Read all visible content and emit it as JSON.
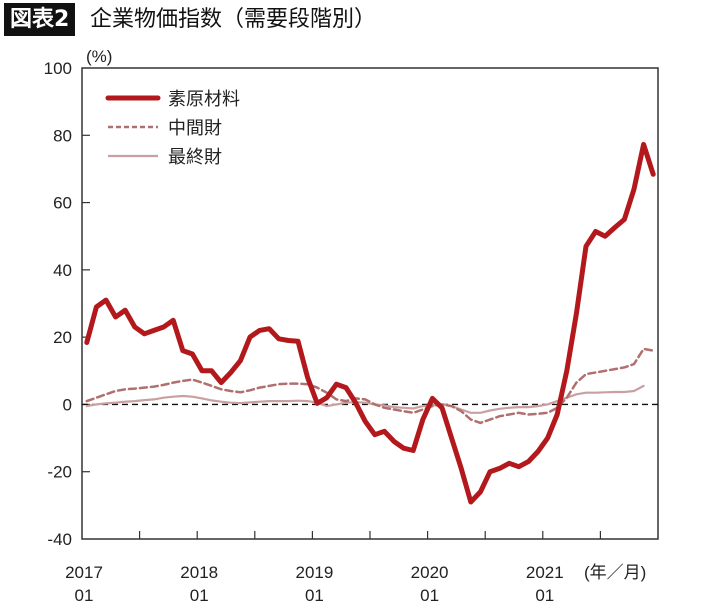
{
  "header": {
    "badge": "図表2",
    "title": "企業物価指数（需要段階別）"
  },
  "chart_data": {
    "type": "line",
    "title": "企業物価指数（需要段階別）",
    "ylabel": "(%)",
    "xlabel": "(年／月)",
    "ylim": [
      -40,
      100
    ],
    "yticks": [
      -40,
      -20,
      0,
      20,
      40,
      60,
      80,
      100
    ],
    "x_start": "2017/01",
    "x_end": "2021/12",
    "xtick_labels": [
      [
        "2017",
        "01"
      ],
      [
        "2018",
        "01"
      ],
      [
        "2019",
        "01"
      ],
      [
        "2020",
        "01"
      ],
      [
        "2021",
        "01"
      ]
    ],
    "legend_position": "top-left",
    "reference_line": 0,
    "series": [
      {
        "name": "素原材料",
        "color": "#b3191c",
        "style": "thick-solid",
        "values": [
          18.4,
          29,
          31,
          26,
          28,
          23,
          21,
          22,
          23,
          25,
          16,
          15,
          10,
          10,
          6.5,
          9.5,
          13,
          20,
          22,
          22.5,
          19.5,
          19,
          18.8,
          8,
          0.3,
          2,
          6,
          5,
          0.5,
          -5,
          -9,
          -8,
          -11,
          -13,
          -13.7,
          -4.5,
          1.8,
          -1,
          -10,
          -19,
          -29,
          -26,
          -20,
          -19,
          -17.5,
          -18.5,
          -17,
          -14,
          -10,
          -3,
          10,
          27,
          47,
          51.4,
          50,
          52.6,
          55,
          64,
          77.3,
          68.4
        ]
      },
      {
        "name": "中間財",
        "color": "#b07070",
        "style": "dashed",
        "values": [
          1,
          2,
          3,
          4,
          4.5,
          4.7,
          5,
          5.3,
          5.8,
          6.5,
          7,
          7.4,
          6.5,
          5.5,
          4.5,
          4,
          3.6,
          4.2,
          5,
          5.5,
          6,
          6.2,
          6.2,
          6,
          5,
          3.5,
          1.5,
          1,
          1.8,
          1.5,
          0,
          -1,
          -1.5,
          -2,
          -2.5,
          -1.5,
          -0.5,
          0,
          -0.5,
          -2,
          -4.5,
          -5.5,
          -4.5,
          -3.5,
          -3,
          -2.5,
          -3,
          -2.8,
          -2.5,
          -1,
          2,
          6.5,
          9,
          9.5,
          10,
          10.5,
          11,
          12,
          16.5,
          16
        ]
      },
      {
        "name": "最終財",
        "color": "#c9a0a0",
        "style": "thin-solid",
        "values": [
          -0.5,
          0,
          0.3,
          0.5,
          0.8,
          1,
          1.3,
          1.5,
          2,
          2.3,
          2.5,
          2.3,
          1.8,
          1.2,
          0.8,
          0.5,
          0.4,
          0.6,
          0.8,
          1,
          1,
          1,
          1.1,
          1,
          0.5,
          -0.5,
          0,
          0.5,
          0.7,
          0.5,
          0,
          -0.3,
          -0.8,
          -1,
          -1.2,
          -0.5,
          -0.3,
          0,
          -0.5,
          -1.5,
          -2.5,
          -2.5,
          -1.8,
          -1.3,
          -1,
          -0.8,
          -0.8,
          -0.5,
          0,
          1,
          2,
          3,
          3.5,
          3.5,
          3.6,
          3.7,
          3.7,
          4,
          5.5,
          null
        ]
      }
    ]
  }
}
